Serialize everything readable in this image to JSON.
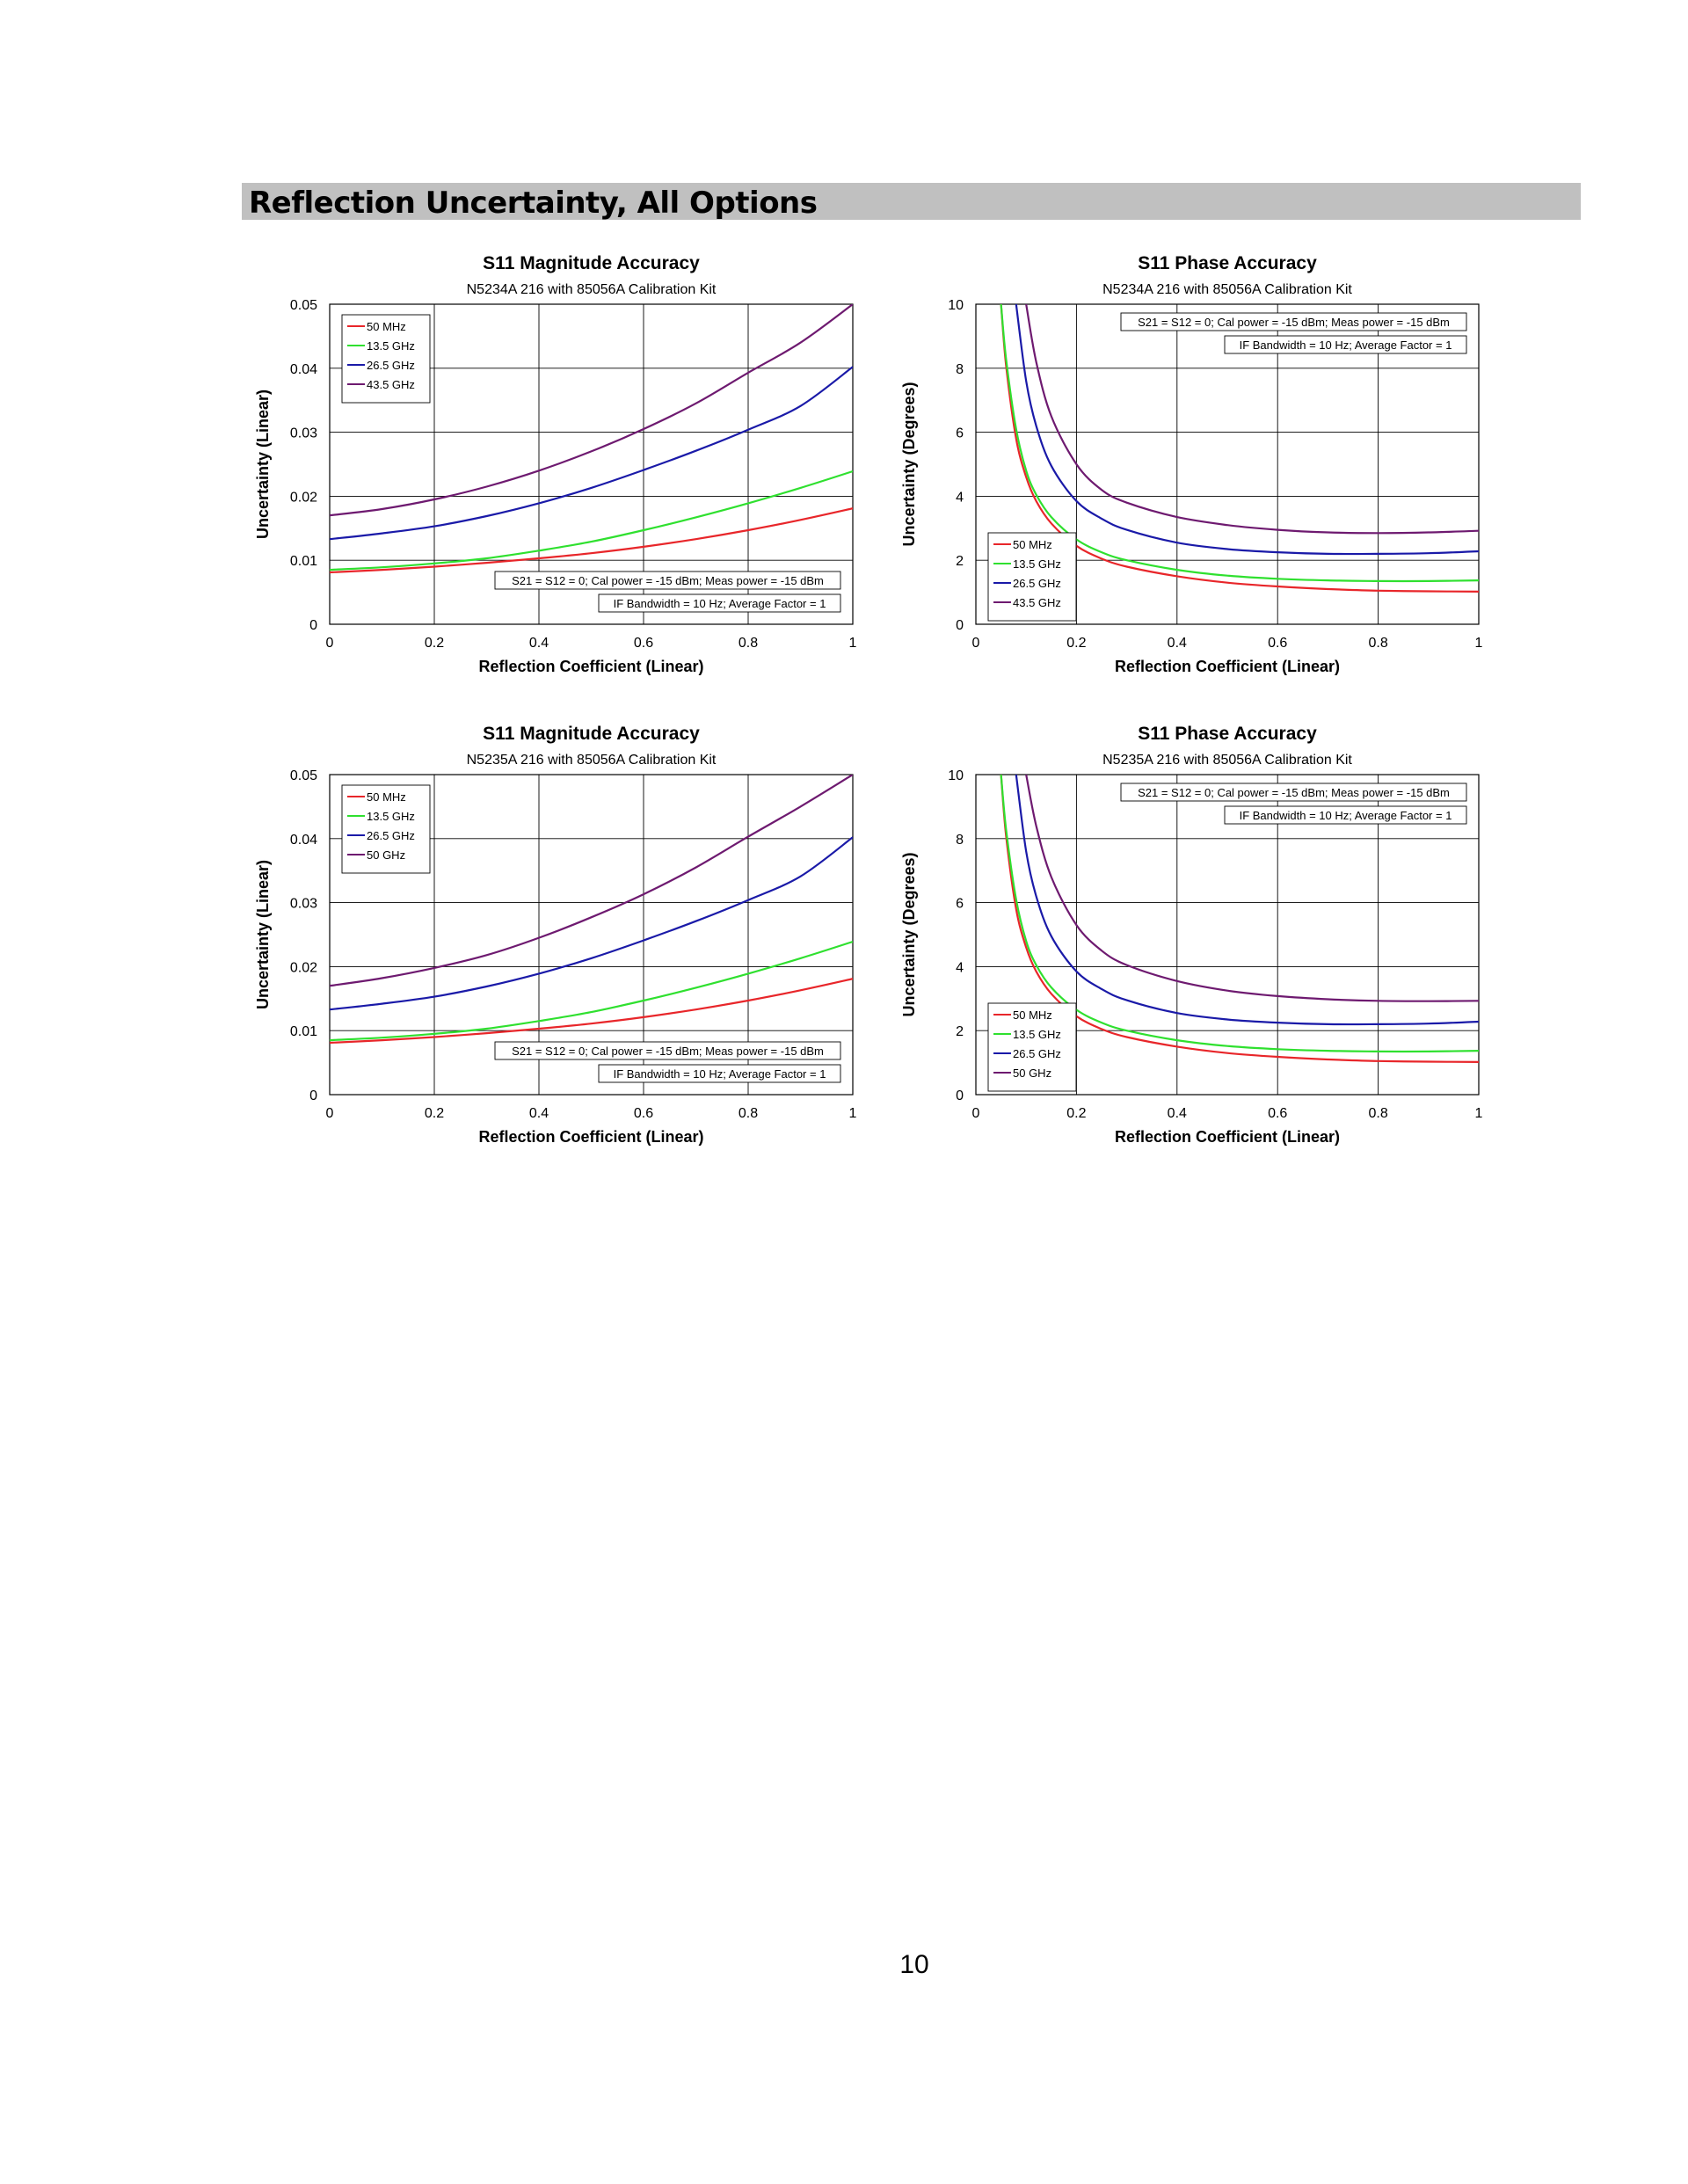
{
  "page": {
    "section_title": "Reflection Uncertainty, All Options",
    "page_number": "10"
  },
  "chart_data": [
    {
      "type": "line",
      "title": "S11 Magnitude Accuracy",
      "subtitle": "N5234A 216 with 85056A Calibration Kit",
      "xlabel": "Reflection Coefficient (Linear)",
      "ylabel": "Uncertainty (Linear)",
      "xlim": [
        0,
        1
      ],
      "ylim": [
        0,
        0.05
      ],
      "xticks": [
        "0",
        "0.2",
        "0.4",
        "0.6",
        "0.8",
        "1"
      ],
      "yticks": [
        "0",
        "0.01",
        "0.02",
        "0.03",
        "0.04",
        "0.05"
      ],
      "grid": true,
      "legend_position": "top-left",
      "annotations": [
        "S21 = S12 = 0; Cal power = -15 dBm; Meas power = -15 dBm",
        "IF Bandwidth = 10 Hz; Average Factor = 1"
      ],
      "annotation_position": "bottom-right",
      "x": [
        0,
        0.1,
        0.2,
        0.3,
        0.4,
        0.5,
        0.6,
        0.7,
        0.8,
        0.9,
        1.0
      ],
      "series": [
        {
          "name": "50 MHz",
          "color": "#e8262a",
          "values": [
            0.0081,
            0.0085,
            0.009,
            0.0096,
            0.0103,
            0.0111,
            0.0121,
            0.0133,
            0.0147,
            0.0163,
            0.0181
          ]
        },
        {
          "name": "13.5 GHz",
          "color": "#2fe02f",
          "values": [
            0.0085,
            0.0089,
            0.0095,
            0.0103,
            0.0115,
            0.0129,
            0.0147,
            0.0167,
            0.0189,
            0.0213,
            0.0239
          ]
        },
        {
          "name": "26.5 GHz",
          "color": "#1a1aa8",
          "values": [
            0.0133,
            0.0142,
            0.0153,
            0.0169,
            0.0189,
            0.0213,
            0.0241,
            0.0271,
            0.0304,
            0.0341,
            0.0402
          ]
        },
        {
          "name": "43.5 GHz",
          "color": "#6e1a70",
          "values": [
            0.017,
            0.018,
            0.0195,
            0.0215,
            0.024,
            0.027,
            0.0305,
            0.0345,
            0.0393,
            0.044,
            0.05
          ]
        }
      ]
    },
    {
      "type": "line",
      "title": "S11 Phase Accuracy",
      "subtitle": "N5234A 216 with 85056A Calibration Kit",
      "xlabel": "Reflection Coefficient (Linear)",
      "ylabel": "Uncertainty (Degrees)",
      "xlim": [
        0,
        1
      ],
      "ylim": [
        0,
        10
      ],
      "xticks": [
        "0",
        "0.2",
        "0.4",
        "0.6",
        "0.8",
        "1"
      ],
      "yticks": [
        "0",
        "2",
        "4",
        "6",
        "8",
        "10"
      ],
      "grid": true,
      "legend_position": "bottom-left",
      "annotations": [
        "S21 = S12 = 0; Cal power = -15 dBm; Meas power = -15 dBm",
        "IF Bandwidth = 10 Hz; Average Factor = 1"
      ],
      "annotation_position": "top-right",
      "x": [
        0.05,
        0.06,
        0.08,
        0.1,
        0.12,
        0.15,
        0.2,
        0.25,
        0.3,
        0.4,
        0.5,
        0.6,
        0.7,
        0.8,
        0.9,
        1.0
      ],
      "series": [
        {
          "name": "50 MHz",
          "color": "#e8262a",
          "values": [
            10.0,
            8.1,
            5.8,
            4.6,
            3.85,
            3.15,
            2.45,
            2.05,
            1.8,
            1.5,
            1.3,
            1.18,
            1.1,
            1.05,
            1.03,
            1.02
          ]
        },
        {
          "name": "13.5 GHz",
          "color": "#2fe02f",
          "values": [
            10.0,
            8.3,
            6.1,
            4.8,
            4.05,
            3.35,
            2.65,
            2.25,
            2.0,
            1.7,
            1.52,
            1.42,
            1.37,
            1.35,
            1.35,
            1.37
          ]
        },
        {
          "name": "26.5 GHz",
          "color": "#1a1aa8",
          "values": [
            null,
            null,
            10.0,
            7.6,
            6.2,
            4.95,
            3.85,
            3.3,
            2.95,
            2.55,
            2.35,
            2.25,
            2.2,
            2.2,
            2.22,
            2.28
          ]
        },
        {
          "name": "43.5 GHz",
          "color": "#6e1a70",
          "values": [
            null,
            null,
            null,
            10.0,
            8.2,
            6.5,
            5.0,
            4.2,
            3.8,
            3.35,
            3.1,
            2.95,
            2.87,
            2.85,
            2.87,
            2.92
          ]
        }
      ]
    },
    {
      "type": "line",
      "title": "S11 Magnitude Accuracy",
      "subtitle": "N5235A 216 with 85056A Calibration Kit",
      "xlabel": "Reflection Coefficient (Linear)",
      "ylabel": "Uncertainty (Linear)",
      "xlim": [
        0,
        1
      ],
      "ylim": [
        0,
        0.05
      ],
      "xticks": [
        "0",
        "0.2",
        "0.4",
        "0.6",
        "0.8",
        "1"
      ],
      "yticks": [
        "0",
        "0.01",
        "0.02",
        "0.03",
        "0.04",
        "0.05"
      ],
      "grid": true,
      "legend_position": "top-left",
      "annotations": [
        "S21 = S12 = 0; Cal power = -15 dBm; Meas power = -15 dBm",
        "IF Bandwidth = 10 Hz; Average Factor = 1"
      ],
      "annotation_position": "bottom-right",
      "x": [
        0,
        0.1,
        0.2,
        0.3,
        0.4,
        0.5,
        0.6,
        0.7,
        0.8,
        0.9,
        1.0
      ],
      "series": [
        {
          "name": "50 MHz",
          "color": "#e8262a",
          "values": [
            0.0081,
            0.0085,
            0.009,
            0.0096,
            0.0103,
            0.0111,
            0.0121,
            0.0133,
            0.0147,
            0.0163,
            0.0181
          ]
        },
        {
          "name": "13.5 GHz",
          "color": "#2fe02f",
          "values": [
            0.0085,
            0.0089,
            0.0095,
            0.0103,
            0.0115,
            0.0129,
            0.0147,
            0.0167,
            0.0189,
            0.0213,
            0.0239
          ]
        },
        {
          "name": "26.5 GHz",
          "color": "#1a1aa8",
          "values": [
            0.0133,
            0.0142,
            0.0153,
            0.0169,
            0.0189,
            0.0213,
            0.0241,
            0.0271,
            0.0304,
            0.0341,
            0.0402
          ]
        },
        {
          "name": "50 GHz",
          "color": "#6e1a70",
          "values": [
            0.017,
            0.0182,
            0.0198,
            0.0218,
            0.0245,
            0.0277,
            0.0313,
            0.0355,
            0.0403,
            0.045,
            0.05
          ]
        }
      ]
    },
    {
      "type": "line",
      "title": "S11 Phase Accuracy",
      "subtitle": "N5235A 216 with 85056A Calibration Kit",
      "xlabel": "Reflection Coefficient (Linear)",
      "ylabel": "Uncertainty (Degrees)",
      "xlim": [
        0,
        1
      ],
      "ylim": [
        0,
        10
      ],
      "xticks": [
        "0",
        "0.2",
        "0.4",
        "0.6",
        "0.8",
        "1"
      ],
      "yticks": [
        "0",
        "2",
        "4",
        "6",
        "8",
        "10"
      ],
      "grid": true,
      "legend_position": "bottom-left",
      "annotations": [
        "S21 = S12 = 0; Cal power = -15 dBm; Meas power = -15 dBm",
        "IF Bandwidth = 10 Hz; Average Factor = 1"
      ],
      "annotation_position": "top-right",
      "x": [
        0.05,
        0.06,
        0.08,
        0.1,
        0.12,
        0.15,
        0.2,
        0.25,
        0.3,
        0.4,
        0.5,
        0.6,
        0.7,
        0.8,
        0.9,
        1.0
      ],
      "series": [
        {
          "name": "50 MHz",
          "color": "#e8262a",
          "values": [
            10.0,
            8.1,
            5.8,
            4.6,
            3.85,
            3.15,
            2.45,
            2.05,
            1.8,
            1.5,
            1.3,
            1.18,
            1.1,
            1.05,
            1.03,
            1.02
          ]
        },
        {
          "name": "13.5 GHz",
          "color": "#2fe02f",
          "values": [
            10.0,
            8.3,
            6.1,
            4.8,
            4.05,
            3.35,
            2.65,
            2.25,
            2.0,
            1.7,
            1.52,
            1.42,
            1.37,
            1.35,
            1.35,
            1.37
          ]
        },
        {
          "name": "26.5 GHz",
          "color": "#1a1aa8",
          "values": [
            null,
            null,
            10.0,
            7.6,
            6.2,
            4.95,
            3.85,
            3.3,
            2.95,
            2.55,
            2.35,
            2.25,
            2.2,
            2.2,
            2.22,
            2.28
          ]
        },
        {
          "name": "50 GHz",
          "color": "#6e1a70",
          "values": [
            null,
            null,
            null,
            10.0,
            8.4,
            6.8,
            5.3,
            4.5,
            4.05,
            3.55,
            3.25,
            3.08,
            2.98,
            2.93,
            2.92,
            2.93
          ]
        }
      ]
    }
  ]
}
